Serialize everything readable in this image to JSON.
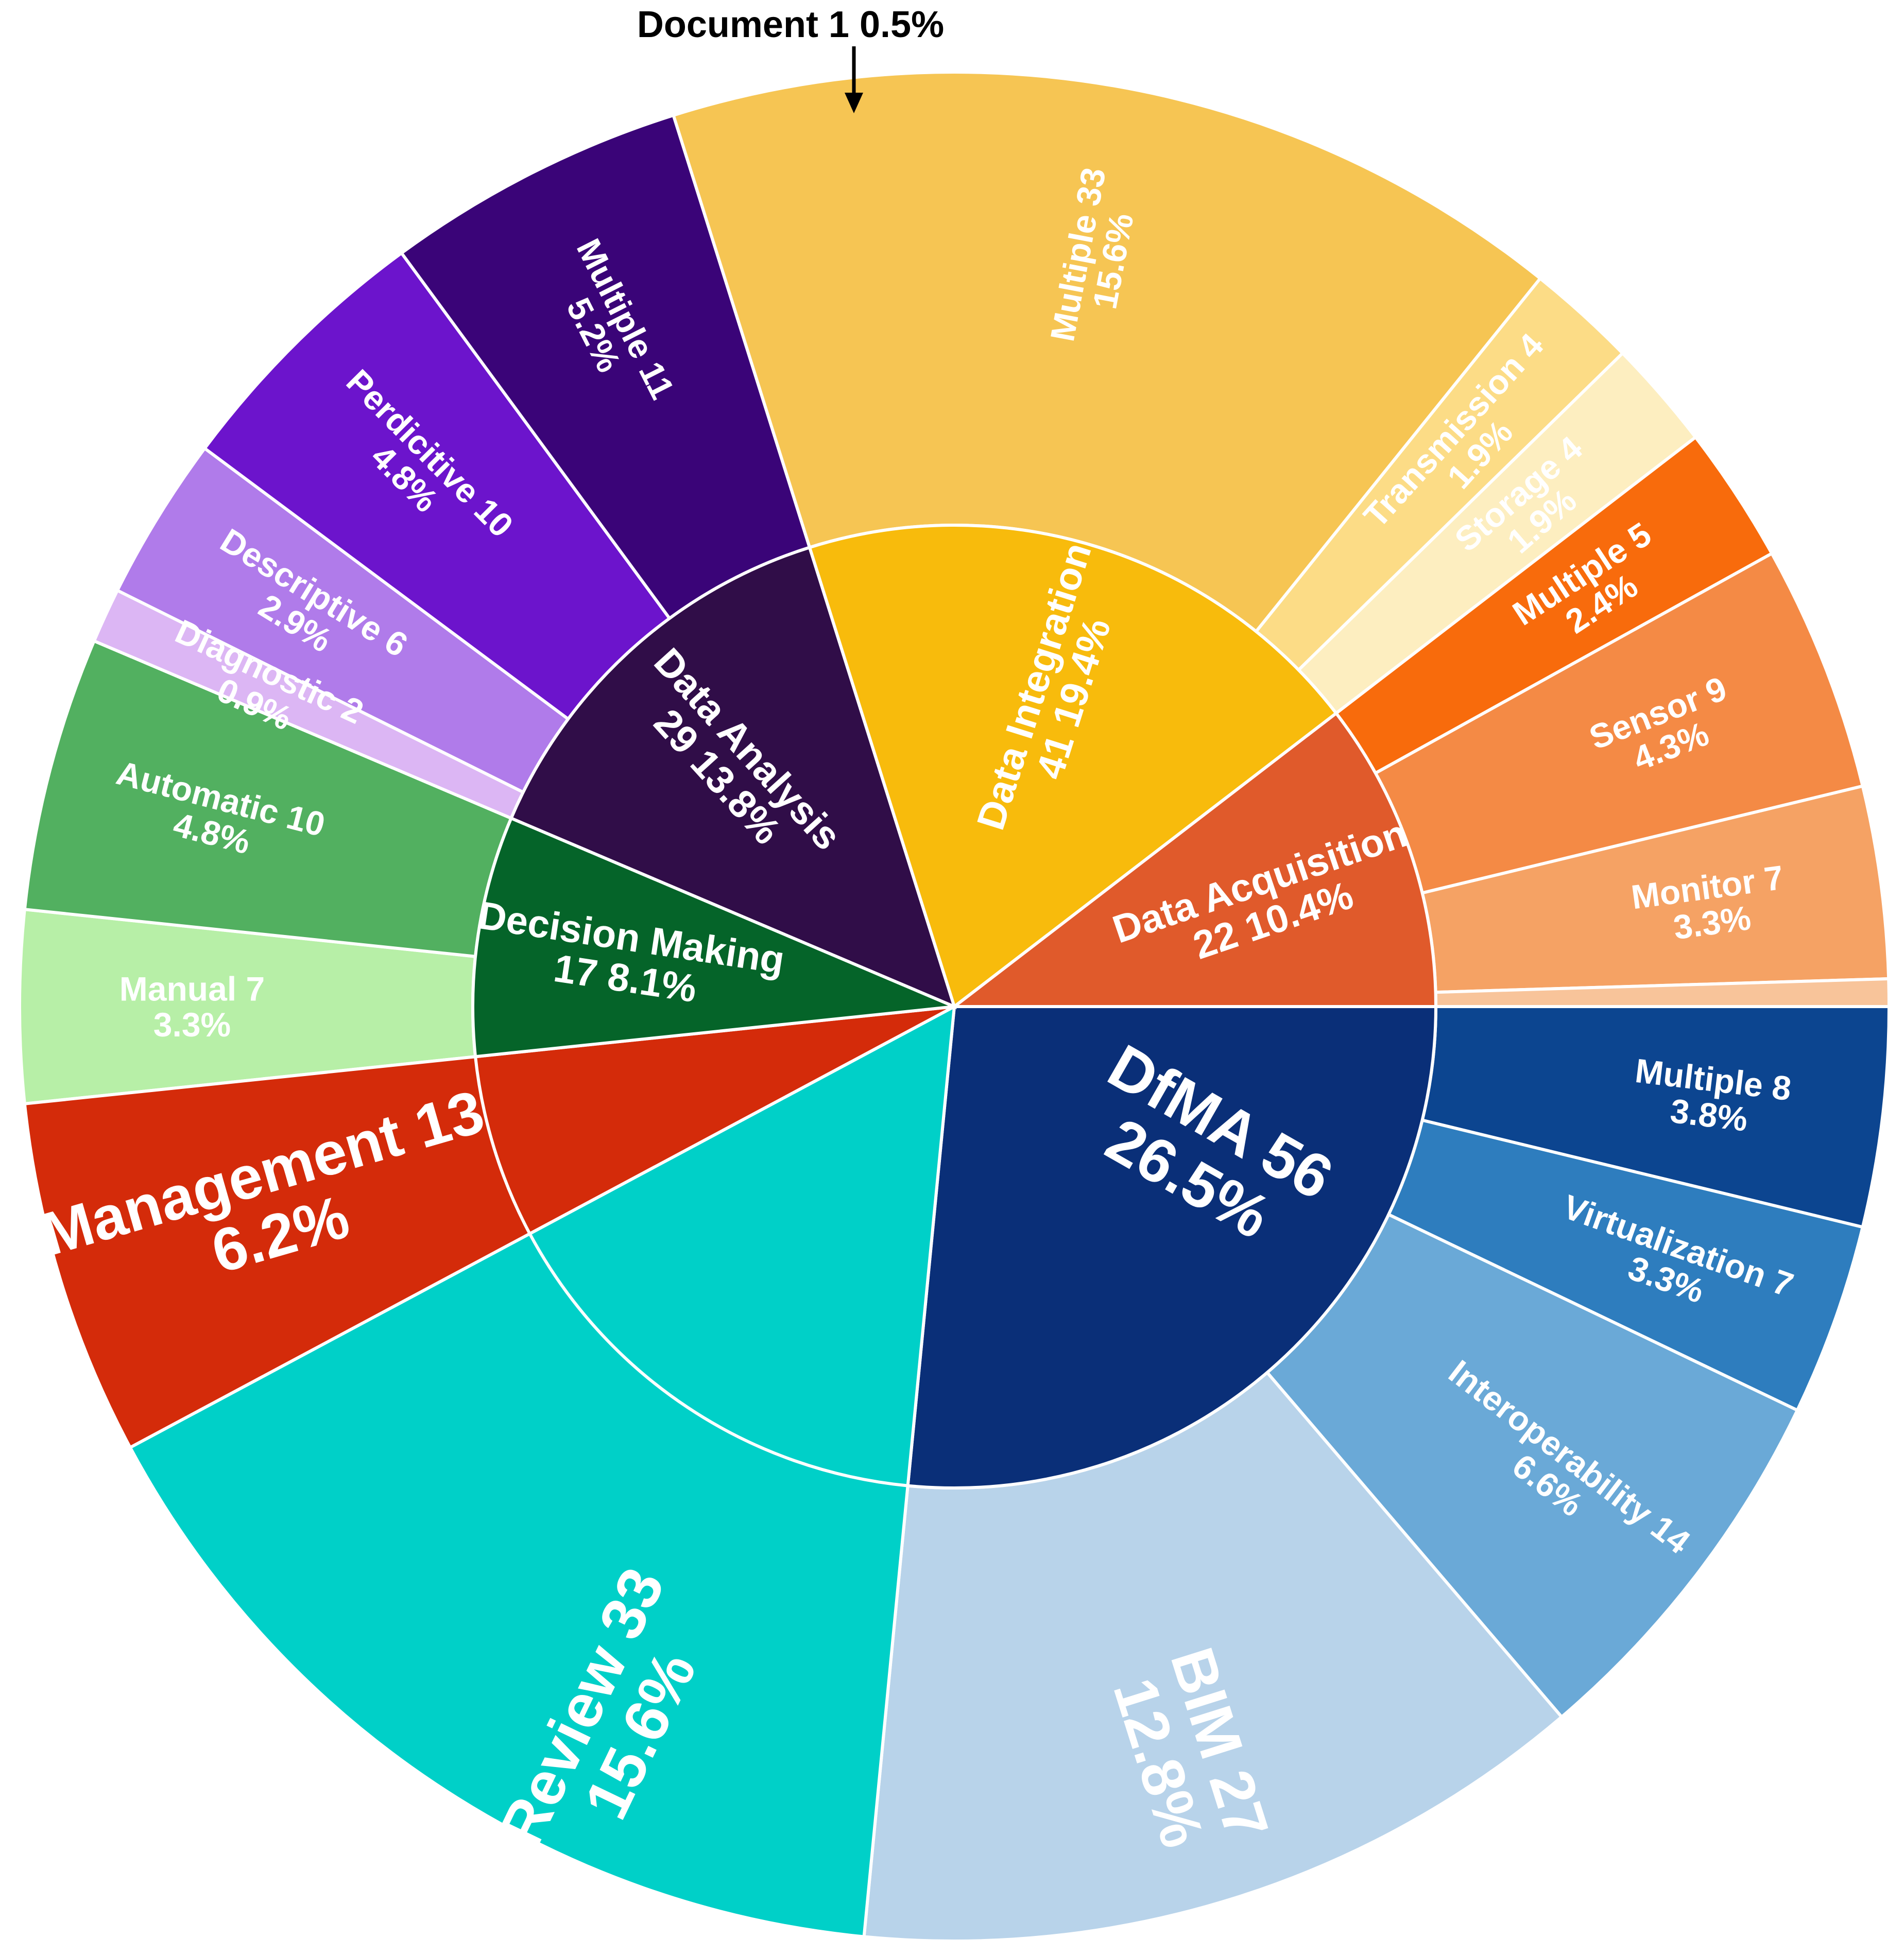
{
  "chart_data": {
    "type": "sunburst",
    "title": "",
    "inner": [
      {
        "name": "DfMA",
        "value": 56,
        "percent": "26.5%",
        "color": "#0a2f78",
        "text": "#ffffff"
      },
      {
        "name": "Review",
        "value": 33,
        "percent": "15.6%",
        "color": "#00d0c8",
        "text": "#ffffff"
      },
      {
        "name": "Management",
        "value": 13,
        "percent": "6.2%",
        "color": "#d42b0a",
        "text": "#ffffff"
      },
      {
        "name": "Decision Making",
        "value": 17,
        "percent": "8.1%",
        "color": "#056429",
        "text": "#ffffff"
      },
      {
        "name": "Data Analysis",
        "value": 29,
        "percent": "13.8%",
        "color": "#300d48",
        "text": "#ffffff"
      },
      {
        "name": "Data Integration",
        "value": 41,
        "percent": "19.4%",
        "color": "#f8bb0c",
        "text": "#ffffff"
      },
      {
        "name": "Data Acquisition",
        "value": 22,
        "percent": "10.4%",
        "color": "#e05a2b",
        "text": "#ffffff"
      }
    ],
    "outer": [
      {
        "parent": "DfMA",
        "name": "Multiple",
        "value": 8,
        "percent": "3.8%",
        "color": "#0c4590",
        "text": "#ffffff"
      },
      {
        "parent": "DfMA",
        "name": "Virtualization",
        "value": 7,
        "percent": "3.3%",
        "color": "#2e7dbe",
        "text": "#ffffff"
      },
      {
        "parent": "DfMA",
        "name": "Interoperability",
        "value": 14,
        "percent": "6.6%",
        "color": "#6aa9d7",
        "text": "#ffffff"
      },
      {
        "parent": "DfMA",
        "name": "BIM",
        "value": 27,
        "percent": "12.8%",
        "color": "#b8d3ea",
        "text": "#ffffff"
      },
      {
        "parent": "Decision Making",
        "name": "Manual",
        "value": 7,
        "percent": "3.3%",
        "color": "#b7efa7",
        "text": "#ffffff"
      },
      {
        "parent": "Decision Making",
        "name": "Automatic",
        "value": 10,
        "percent": "4.8%",
        "color": "#52b060",
        "text": "#ffffff"
      },
      {
        "parent": "Data Analysis",
        "name": "Diagnostic",
        "value": 2,
        "percent": "0.9%",
        "color": "#dcb6f4",
        "text": "#ffffff"
      },
      {
        "parent": "Data Analysis",
        "name": "Descriptive",
        "value": 6,
        "percent": "2.9%",
        "color": "#b07bea",
        "text": "#ffffff"
      },
      {
        "parent": "Data Analysis",
        "name": "Perdicitive",
        "value": 10,
        "percent": "4.8%",
        "color": "#6c14cc",
        "text": "#ffffff"
      },
      {
        "parent": "Data Analysis",
        "name": "Multiple",
        "value": 11,
        "percent": "5.2%",
        "color": "#3a0478",
        "text": "#ffffff"
      },
      {
        "parent": "Data Integration",
        "name": "Multiple",
        "value": 33,
        "percent": "15.6%",
        "color": "#f6c553",
        "text": "#ffffff"
      },
      {
        "parent": "Data Integration",
        "name": "Transmission",
        "value": 4,
        "percent": "1.9%",
        "color": "#fcdc86",
        "text": "#ffffff"
      },
      {
        "parent": "Data Integration",
        "name": "Storage",
        "value": 4,
        "percent": "1.9%",
        "color": "#fdeec0",
        "text": "#ffffff"
      },
      {
        "parent": "Data Acquisition",
        "name": "Multiple",
        "value": 5,
        "percent": "2.4%",
        "color": "#f86b0c",
        "text": "#ffffff"
      },
      {
        "parent": "Data Acquisition",
        "name": "Sensor",
        "value": 9,
        "percent": "4.3%",
        "color": "#f48a45",
        "text": "#ffffff"
      },
      {
        "parent": "Data Acquisition",
        "name": "Monitor",
        "value": 7,
        "percent": "3.3%",
        "color": "#f5a264",
        "text": "#ffffff"
      },
      {
        "parent": "Data Acquisition",
        "name": "Document",
        "value": 1,
        "percent": "0.5%",
        "color": "#f8c49a",
        "text": "#ffffff"
      }
    ],
    "callout": "Document 1 0.5%"
  }
}
